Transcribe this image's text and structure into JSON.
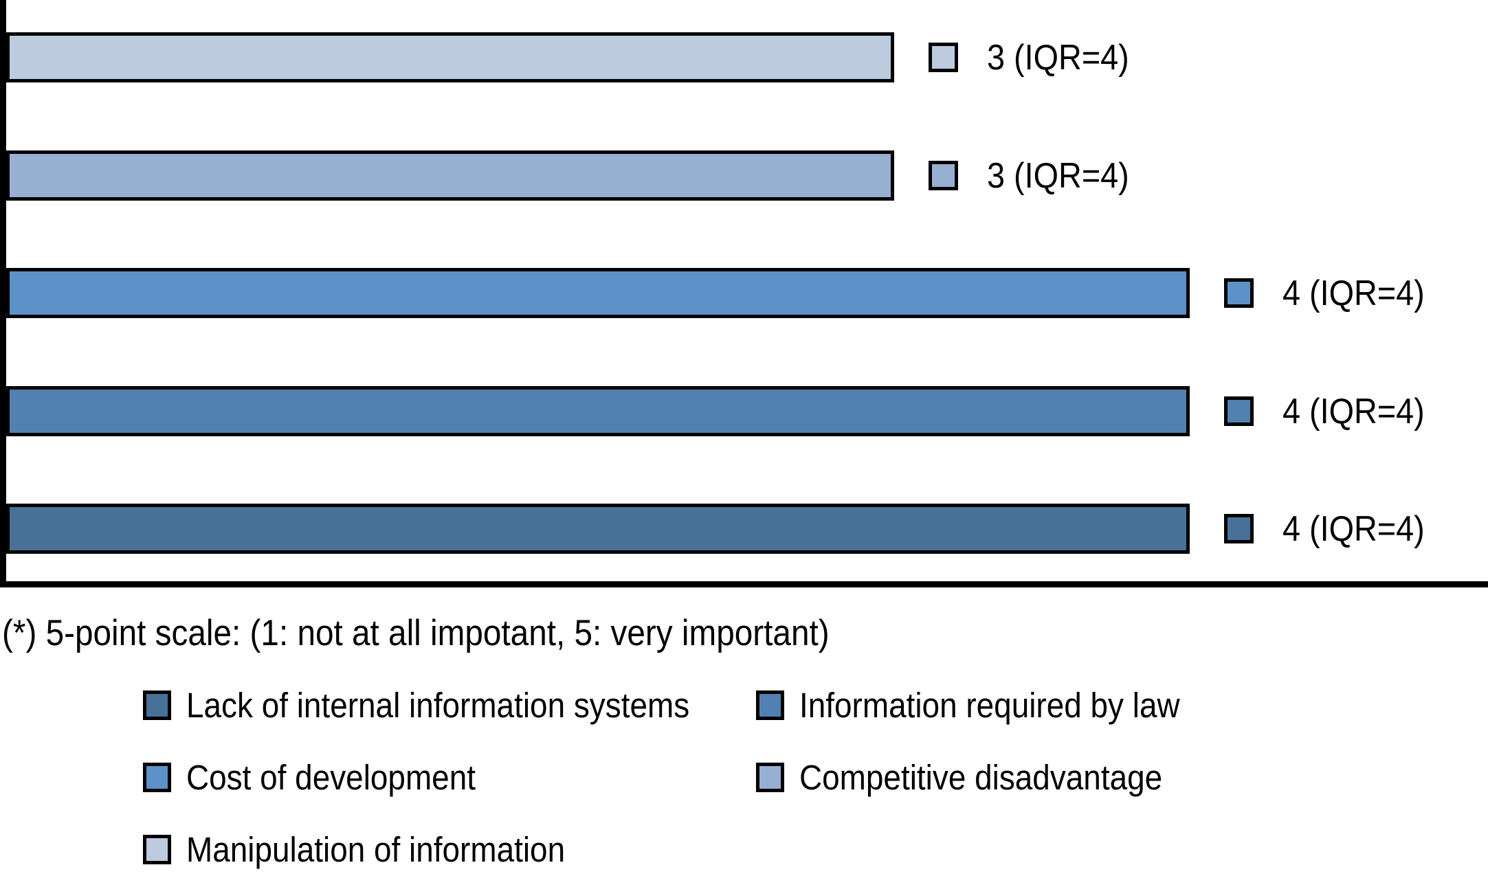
{
  "chart_data": {
    "type": "bar",
    "orientation": "horizontal",
    "title": "",
    "xlabel": "",
    "ylabel": "",
    "xlim": [
      0,
      5
    ],
    "grid": false,
    "axis_tick_labels_visible": false,
    "axes_shown": [
      "left",
      "bottom"
    ],
    "legend_position": "bottom",
    "categories": [
      "Manipulation of information",
      "Competitive disadvantage",
      "Cost of development",
      "Information required by law",
      "Lack of internal information systems"
    ],
    "values": [
      3,
      3,
      4,
      4,
      4
    ],
    "points": [
      {
        "category": "Manipulation of information",
        "value": 3,
        "iqr": 4,
        "label": "3 (IQR=4)",
        "color": "#BDCBDF"
      },
      {
        "category": "Competitive disadvantage",
        "value": 3,
        "iqr": 4,
        "label": "3 (IQR=4)",
        "color": "#97B0D2"
      },
      {
        "category": "Cost of development",
        "value": 4,
        "iqr": 4,
        "label": "4 (IQR=4)",
        "color": "#5C92C8"
      },
      {
        "category": "Information required by law",
        "value": 4,
        "iqr": 4,
        "label": "4 (IQR=4)",
        "color": "#5181B1"
      },
      {
        "category": "Lack of internal information systems",
        "value": 4,
        "iqr": 4,
        "label": "4 (IQR=4)",
        "color": "#477199"
      }
    ]
  },
  "footnote": "(*) 5-point scale: (1: not at all impotant, 5: very important)",
  "legend": {
    "columns": [
      {
        "items": [
          {
            "label": "Lack of internal information systems",
            "color": "#477199"
          },
          {
            "label": "Cost of development",
            "color": "#5C92C8"
          },
          {
            "label": "Manipulation of information",
            "color": "#BDCBDF"
          }
        ]
      },
      {
        "items": [
          {
            "label": "Information required by law",
            "color": "#5181B1"
          },
          {
            "label": "Competitive disadvantage",
            "color": "#97B0D2"
          }
        ]
      }
    ]
  }
}
